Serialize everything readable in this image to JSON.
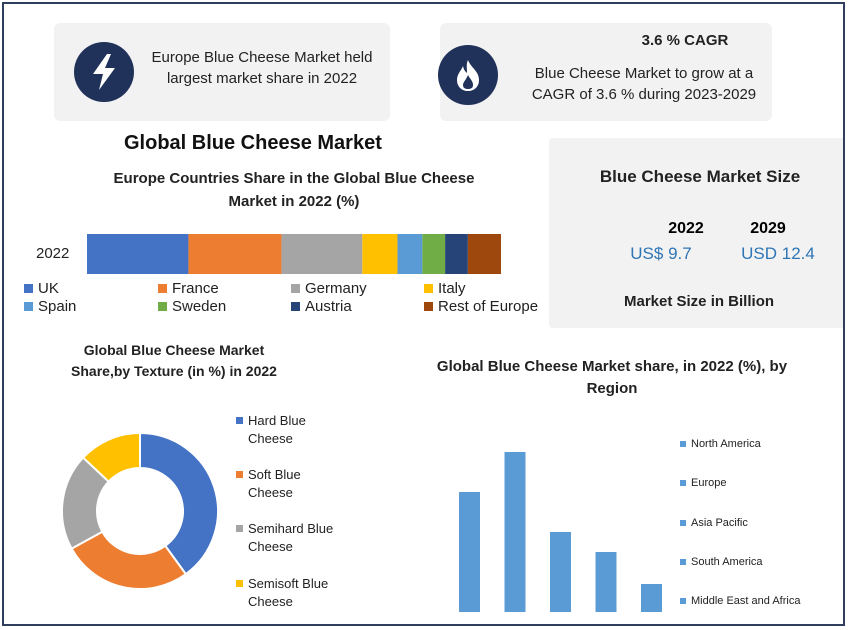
{
  "callouts": {
    "left_text": "Europe Blue Cheese Market held largest market share in 2022",
    "right_title": "3.6 % CAGR",
    "right_text": "Blue Cheese Market to grow at a CAGR of 3.6 % during 2023-2029",
    "left_icon": "lightning-bolt-icon",
    "right_icon": "flame-icon"
  },
  "main_title": "Global Blue Cheese Market",
  "market_size": {
    "title": "Blue Cheese Market Size",
    "year1": "2022",
    "value1": "US$ 9.7",
    "year2": "2029",
    "value2": "USD 12.4",
    "footer": "Market Size in Billion",
    "value_color": "#2e75b6"
  },
  "chart_data": [
    {
      "type": "bar",
      "orientation": "horizontal-stacked",
      "title": "Europe Countries Share in the Global Blue Cheese Market in 2022 (%)",
      "categories": [
        "2022"
      ],
      "series": [
        {
          "name": "UK",
          "values": [
            24.5
          ],
          "color": "#4472c4"
        },
        {
          "name": "France",
          "values": [
            22.5
          ],
          "color": "#ed7d31"
        },
        {
          "name": "Germany",
          "values": [
            19.5
          ],
          "color": "#a5a5a5"
        },
        {
          "name": "Italy",
          "values": [
            8.5
          ],
          "color": "#ffc000"
        },
        {
          "name": "Spain",
          "values": [
            6.0
          ],
          "color": "#5b9bd5"
        },
        {
          "name": "Sweden",
          "values": [
            5.5
          ],
          "color": "#70ad47"
        },
        {
          "name": "Austria",
          "values": [
            5.5
          ],
          "color": "#264478"
        },
        {
          "name": "Rest of Europe",
          "values": [
            8.0
          ],
          "color": "#9e480e"
        }
      ],
      "legend_position": "bottom"
    },
    {
      "type": "pie",
      "variant": "donut",
      "title": "Global Blue Cheese Market Share,by Texture (in %) in 2022",
      "categories": [
        "Hard Blue Cheese",
        "Soft Blue Cheese",
        "Semihard Blue Cheese",
        "Semisoft Blue Cheese"
      ],
      "values": [
        40,
        27,
        20,
        13
      ],
      "colors": [
        "#4472c4",
        "#ed7d31",
        "#a5a5a5",
        "#ffc000"
      ],
      "legend_position": "right"
    },
    {
      "type": "bar",
      "title": "Global Blue Cheese Market share, in 2022 (%), by Region",
      "categories": [
        "North America",
        "Europe",
        "Asia Pacific",
        "South America",
        "Middle East and Africa"
      ],
      "values": [
        30,
        40,
        20,
        15,
        7
      ],
      "ylim": [
        0,
        45
      ],
      "color": "#5b9bd5",
      "grid": false,
      "legend_position": "right"
    }
  ]
}
